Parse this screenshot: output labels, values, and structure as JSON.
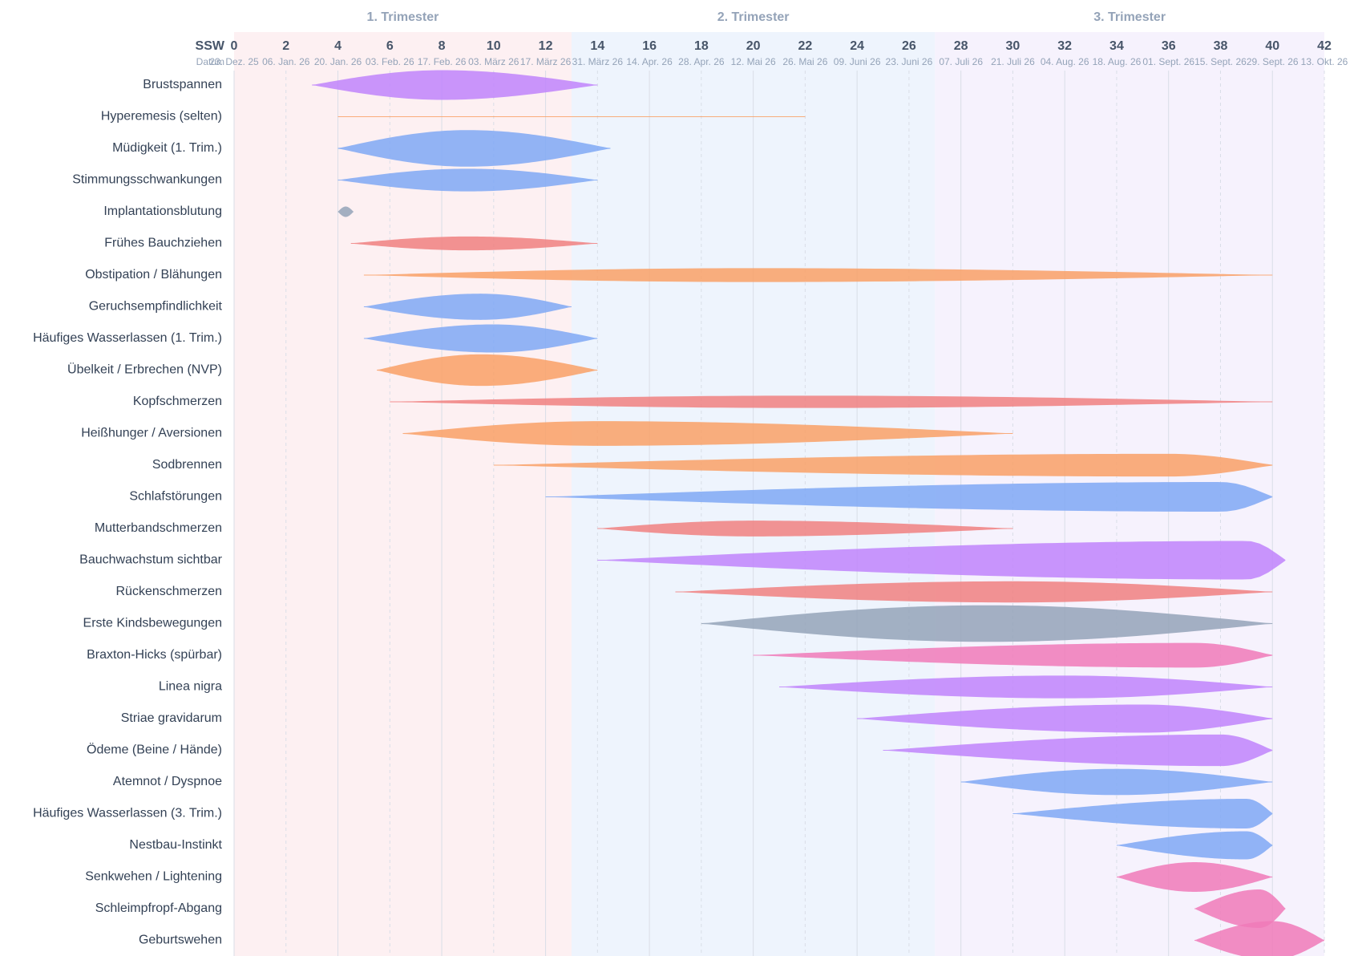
{
  "chart_data": {
    "type": "range",
    "x_label": "SSW",
    "date_label": "Datum",
    "xlim": [
      0,
      42
    ],
    "xticks": [
      0,
      2,
      4,
      6,
      8,
      10,
      12,
      14,
      16,
      18,
      20,
      22,
      24,
      26,
      28,
      30,
      32,
      34,
      36,
      38,
      40,
      42
    ],
    "date_labels": [
      "23. Dez. 25",
      "06. Jan. 26",
      "20. Jan. 26",
      "03. Feb. 26",
      "17. Feb. 26",
      "03. März 26",
      "17. März 26",
      "31. März 26",
      "14. Apr. 26",
      "28. Apr. 26",
      "12. Mai 26",
      "26. Mai 26",
      "09. Juni 26",
      "23. Juni 26",
      "07. Juli 26",
      "21. Juli 26",
      "04. Aug. 26",
      "18. Aug. 26",
      "01. Sept. 26",
      "15. Sept. 26",
      "29. Sept. 26",
      "13. Okt. 26"
    ],
    "trimesters": [
      {
        "label": "1. Trimester",
        "start": 0,
        "end": 13,
        "color": "#fdf0f2"
      },
      {
        "label": "2. Trimester",
        "start": 13,
        "end": 27,
        "color": "#eef4fd"
      },
      {
        "label": "3. Trimester",
        "start": 27,
        "end": 42,
        "color": "#f6f2fd"
      }
    ],
    "series": [
      {
        "name": "Brustspannen",
        "color": "#c084fc",
        "start": 3,
        "peak": 8,
        "end": 14,
        "intensity": 77
      },
      {
        "name": "Hyperemesis (selten)",
        "color": "#f9a066",
        "start": 4,
        "peak": 13,
        "end": 22,
        "intensity": 2
      },
      {
        "name": "Müdigkeit (1. Trim.)",
        "color": "#7fa8f5",
        "start": 4,
        "peak": 9,
        "end": 14.5,
        "intensity": 95
      },
      {
        "name": "Stimmungsschwankungen",
        "color": "#7fa8f5",
        "start": 4,
        "peak": 9,
        "end": 14,
        "intensity": 59
      },
      {
        "name": "Implantationsblutung",
        "color": "#94a3b8",
        "start": 4,
        "peak": 4.3,
        "end": 4.6,
        "intensity": 27
      },
      {
        "name": "Frühes Bauchziehen",
        "color": "#f08080",
        "start": 4.5,
        "peak": 9,
        "end": 14,
        "intensity": 36
      },
      {
        "name": "Obstipation / Blähungen",
        "color": "#f9a066",
        "start": 5,
        "peak": 20,
        "end": 40,
        "intensity": 36
      },
      {
        "name": "Geruchsempfindlichkeit",
        "color": "#7fa8f5",
        "start": 5,
        "peak": 9.5,
        "end": 13,
        "intensity": 68
      },
      {
        "name": "Häufiges Wasserlassen (1. Trim.)",
        "color": "#7fa8f5",
        "start": 5,
        "peak": 10,
        "end": 14,
        "intensity": 73
      },
      {
        "name": "Übelkeit / Erbrechen (NVP)",
        "color": "#f9a066",
        "start": 5.5,
        "peak": 9.5,
        "end": 14,
        "intensity": 82
      },
      {
        "name": "Kopfschmerzen",
        "color": "#f08080",
        "start": 6,
        "peak": 22,
        "end": 40,
        "intensity": 32
      },
      {
        "name": "Heißhunger / Aversionen",
        "color": "#f9a066",
        "start": 6.5,
        "peak": 14,
        "end": 30,
        "intensity": 64
      },
      {
        "name": "Sodbrennen",
        "color": "#f9a066",
        "start": 10,
        "peak": 36,
        "end": 40,
        "intensity": 59
      },
      {
        "name": "Schlafstörungen",
        "color": "#7fa8f5",
        "start": 12,
        "peak": 38,
        "end": 40,
        "intensity": 77
      },
      {
        "name": "Mutterbandschmerzen",
        "color": "#f08080",
        "start": 14,
        "peak": 20,
        "end": 30,
        "intensity": 41
      },
      {
        "name": "Bauchwachstum sichtbar",
        "color": "#c084fc",
        "start": 14,
        "peak": 39,
        "end": 40.5,
        "intensity": 100
      },
      {
        "name": "Rückenschmerzen",
        "color": "#f08080",
        "start": 17,
        "peak": 30,
        "end": 40,
        "intensity": 55
      },
      {
        "name": "Erste Kindsbewegungen",
        "color": "#94a3b8",
        "start": 18,
        "peak": 29,
        "end": 40,
        "intensity": 95
      },
      {
        "name": "Braxton-Hicks (spürbar)",
        "color": "#f07ab8",
        "start": 20,
        "peak": 37,
        "end": 40,
        "intensity": 64
      },
      {
        "name": "Linea nigra",
        "color": "#c084fc",
        "start": 21,
        "peak": 32,
        "end": 40,
        "intensity": 59
      },
      {
        "name": "Striae gravidarum",
        "color": "#c084fc",
        "start": 24,
        "peak": 35,
        "end": 40,
        "intensity": 73
      },
      {
        "name": "Ödeme (Beine / Hände)",
        "color": "#c084fc",
        "start": 25,
        "peak": 38,
        "end": 40,
        "intensity": 82
      },
      {
        "name": "Atemnot / Dyspnoe",
        "color": "#7fa8f5",
        "start": 28,
        "peak": 34,
        "end": 40,
        "intensity": 68
      },
      {
        "name": "Häufiges Wasserlassen (3. Trim.)",
        "color": "#7fa8f5",
        "start": 30,
        "peak": 39,
        "end": 40,
        "intensity": 77
      },
      {
        "name": "Nestbau-Instinkt",
        "color": "#7fa8f5",
        "start": 34,
        "peak": 39,
        "end": 40,
        "intensity": 73
      },
      {
        "name": "Senkwehen / Lightening",
        "color": "#f07ab8",
        "start": 34,
        "peak": 37,
        "end": 40,
        "intensity": 77
      },
      {
        "name": "Schleimpfropf-Abgang",
        "color": "#f07ab8",
        "start": 37,
        "peak": 39.5,
        "end": 40.5,
        "intensity": 100
      },
      {
        "name": "Geburtswehen",
        "color": "#f07ab8",
        "start": 37,
        "peak": 40,
        "end": 42,
        "intensity": 100
      }
    ]
  }
}
